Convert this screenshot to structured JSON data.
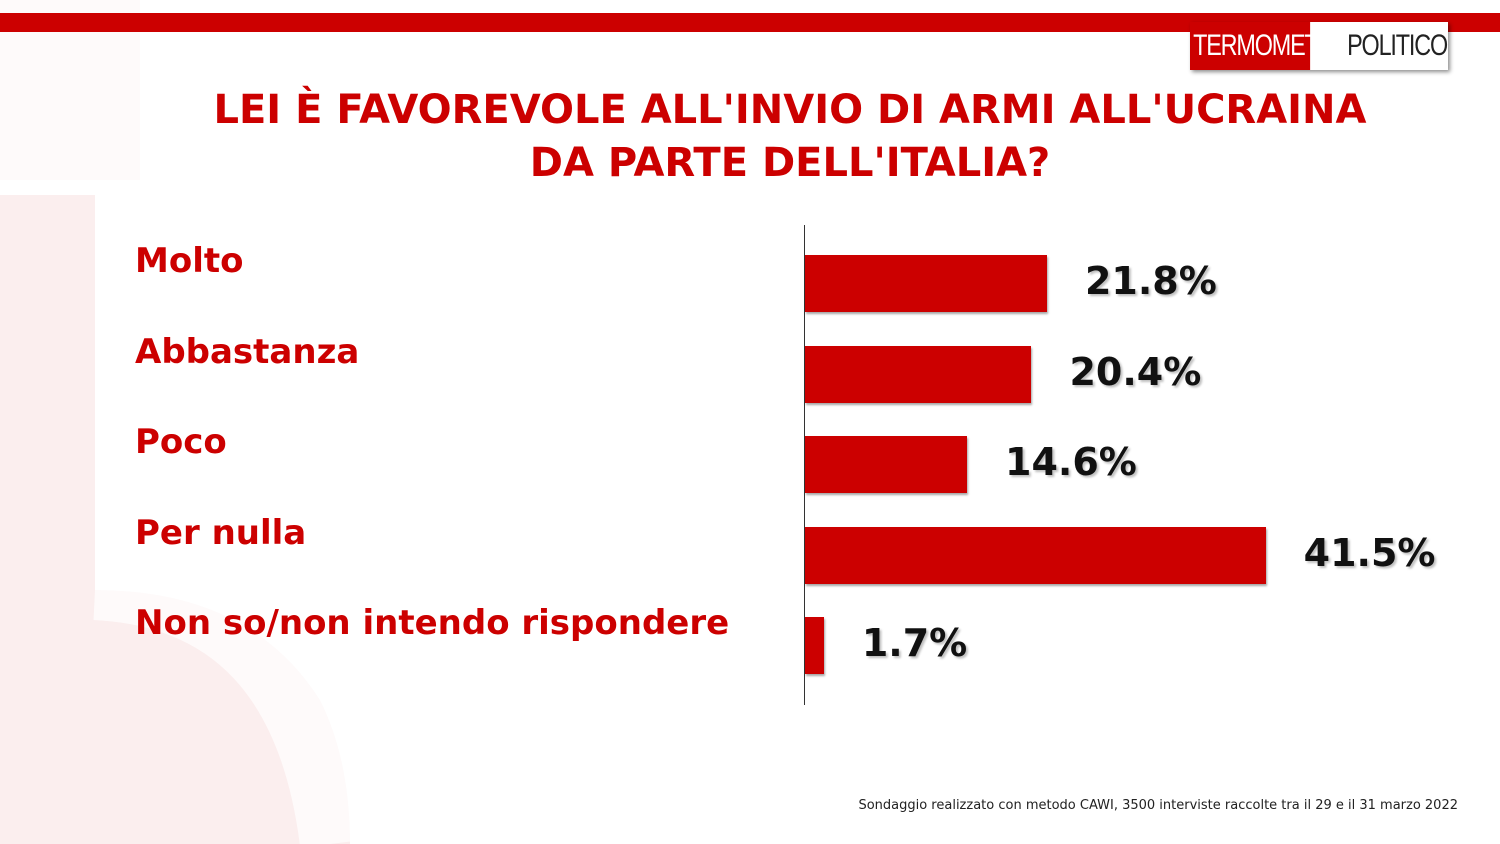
{
  "header": {
    "logo_part1": "TERMOMETRO",
    "logo_part2": "POLITICO",
    "title_line1": "LEI È FAVOREVOLE ALL'INVIO DI ARMI ALL'UCRAINA",
    "title_line2": "DA PARTE DELL'ITALIA?"
  },
  "colors": {
    "accent": "#cc0000",
    "value_text": "#111111"
  },
  "chart_data": {
    "type": "bar",
    "orientation": "horizontal",
    "categories": [
      "Molto",
      "Abbastanza",
      "Poco",
      "Per nulla",
      "Non so/non intendo rispondere"
    ],
    "values": [
      21.8,
      20.4,
      14.6,
      41.5,
      1.7
    ],
    "value_labels": [
      "21.8%",
      "20.4%",
      "14.6%",
      "41.5%",
      "1.7%"
    ],
    "title": "LEI È FAVOREVOLE ALL'INVIO DI ARMI ALL'UCRAINA DA PARTE DELL'ITALIA?",
    "grid": false,
    "legend": "none"
  },
  "footnote": "Sondaggio realizzato con metodo CAWI, 3500 interviste raccolte tra il 29 e il 31 marzo 2022"
}
